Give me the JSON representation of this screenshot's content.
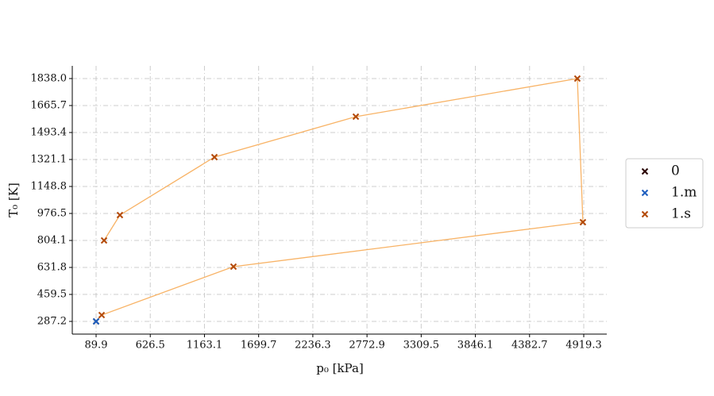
{
  "chart_data": {
    "type": "scatter",
    "x_label": "p₀ [kPa]",
    "y_label": "T₀ [K]",
    "xlim": [
      -146.0,
      5147.4
    ],
    "ylim": [
      206.1,
      1919.0
    ],
    "xticks": [
      89.9,
      626.5,
      1163.1,
      1699.7,
      2236.3,
      2772.9,
      3309.5,
      3846.1,
      4382.7,
      4919.3
    ],
    "yticks": [
      287.2,
      459.5,
      631.8,
      804.1,
      976.5,
      1148.8,
      1321.1,
      1493.4,
      1665.7,
      {
        "value": 1838,
        "label": "1838.0"
      }
    ],
    "grid": true,
    "legend": "right",
    "line": {
      "color": "#f8b366",
      "x": [
        89.9,
        145.0,
        1450.5,
        4911.0,
        4856.0,
        2662.0,
        1261.8,
        325.9,
        168.6
      ],
      "y": [
        287.2,
        327.7,
        636.9,
        920.7,
        1838.0,
        1594.7,
        1336.3,
        966.3,
        804.1
      ]
    },
    "series": [
      {
        "name": "0",
        "color": "#2a0505",
        "x": [
          89.9
        ],
        "y": [
          287.2
        ]
      },
      {
        "name": "1.m",
        "color": "#1f5fbf",
        "x": [
          89.9
        ],
        "y": [
          287.2
        ]
      },
      {
        "name": "1.s",
        "color": "#b34a0a",
        "x": [
          145.0,
          1450.5,
          4911.0,
          4856.0,
          2662.0,
          1261.8,
          325.9,
          168.6
        ],
        "y": [
          327.7,
          636.9,
          920.7,
          1838.0,
          1594.7,
          1336.3,
          966.3,
          804.1
        ]
      }
    ]
  }
}
